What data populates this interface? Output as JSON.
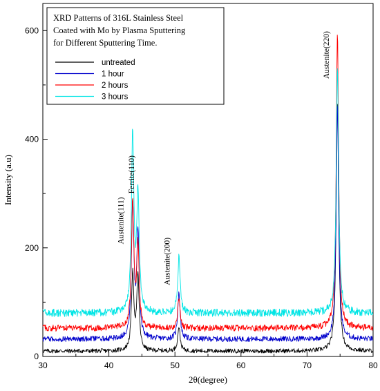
{
  "chart_data": {
    "type": "line",
    "title_lines": [
      "XRD Patterns of 316L Stainless Steel",
      "Coated with Mo by Plasma Sputtering",
      "for Different Sputtering  Time."
    ],
    "xlabel": "2θ(degree)",
    "ylabel": "Intensity (a.u)",
    "xlim": [
      30,
      80
    ],
    "ylim": [
      0,
      650
    ],
    "x_ticks": [
      30,
      40,
      50,
      60,
      70,
      80
    ],
    "y_ticks": [
      0,
      200,
      400,
      600
    ],
    "grid": false,
    "legend_position": "top-left",
    "series": [
      {
        "name": "untreated",
        "color": "#000000",
        "baseline": 10,
        "noise": 4,
        "peaks": [
          {
            "x": 43.6,
            "y": 150
          },
          {
            "x": 44.4,
            "y": 145
          },
          {
            "x": 50.6,
            "y": 55
          },
          {
            "x": 74.6,
            "y": 470
          }
        ]
      },
      {
        "name": "1 hour",
        "color": "#0000cc",
        "baseline": 32,
        "noise": 5,
        "peaks": [
          {
            "x": 43.6,
            "y": 278
          },
          {
            "x": 44.4,
            "y": 225
          },
          {
            "x": 50.6,
            "y": 118
          },
          {
            "x": 74.6,
            "y": 462
          }
        ]
      },
      {
        "name": "2 hours",
        "color": "#ff0000",
        "baseline": 52,
        "noise": 6,
        "peaks": [
          {
            "x": 43.6,
            "y": 282
          },
          {
            "x": 44.4,
            "y": 202
          },
          {
            "x": 50.6,
            "y": 108
          },
          {
            "x": 74.6,
            "y": 595
          }
        ]
      },
      {
        "name": "3 hours",
        "color": "#00e5e5",
        "baseline": 80,
        "noise": 7,
        "peaks": [
          {
            "x": 43.6,
            "y": 408
          },
          {
            "x": 44.4,
            "y": 300
          },
          {
            "x": 50.6,
            "y": 182
          },
          {
            "x": 74.6,
            "y": 530
          }
        ]
      }
    ],
    "annotations": [
      {
        "text": "Austenite(111)",
        "x": 42.2,
        "y": 250
      },
      {
        "text": "Ferrite(110)",
        "x": 43.8,
        "y": 335
      },
      {
        "text": "Austenite(200)",
        "x": 49.2,
        "y": 175
      },
      {
        "text": "Austenite(220)",
        "x": 73.3,
        "y": 555
      }
    ]
  }
}
